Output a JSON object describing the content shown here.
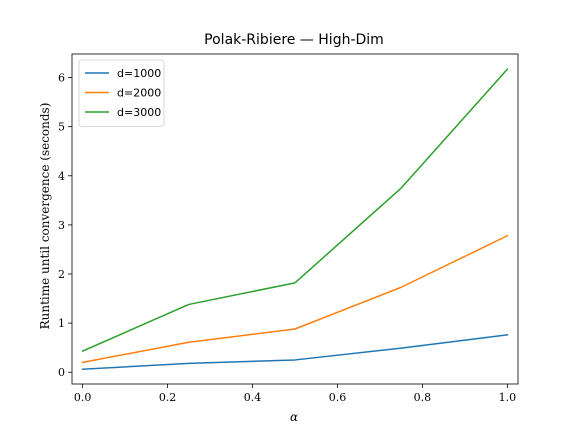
{
  "chart_data": {
    "type": "line",
    "title": "Polak-Ribiere — High-Dim",
    "xlabel": "α",
    "ylabel": "Runtime until convergence (seconds)",
    "xlim": [
      -0.025,
      1.025
    ],
    "ylim": [
      -0.24,
      6.48
    ],
    "x_ticks": [
      0.0,
      0.2,
      0.4,
      0.6,
      0.8,
      1.0
    ],
    "x_tick_labels": [
      "0.0",
      "0.2",
      "0.4",
      "0.6",
      "0.8",
      "1.0"
    ],
    "y_ticks": [
      0,
      1,
      2,
      3,
      4,
      5,
      6
    ],
    "y_tick_labels": [
      "0",
      "1",
      "2",
      "3",
      "4",
      "5",
      "6"
    ],
    "grid": false,
    "legend_position": "top-left",
    "x": [
      0.0,
      0.25,
      0.5,
      0.75,
      1.0
    ],
    "series": [
      {
        "name": "d=1000",
        "color": "#1f77b4",
        "values": [
          0.06,
          0.18,
          0.25,
          0.49,
          0.76
        ]
      },
      {
        "name": "d=2000",
        "color": "#ff7f0e",
        "values": [
          0.2,
          0.61,
          0.88,
          1.73,
          2.78
        ]
      },
      {
        "name": "d=3000",
        "color": "#2ca02c",
        "values": [
          0.43,
          1.38,
          1.82,
          3.75,
          6.17
        ]
      }
    ]
  }
}
